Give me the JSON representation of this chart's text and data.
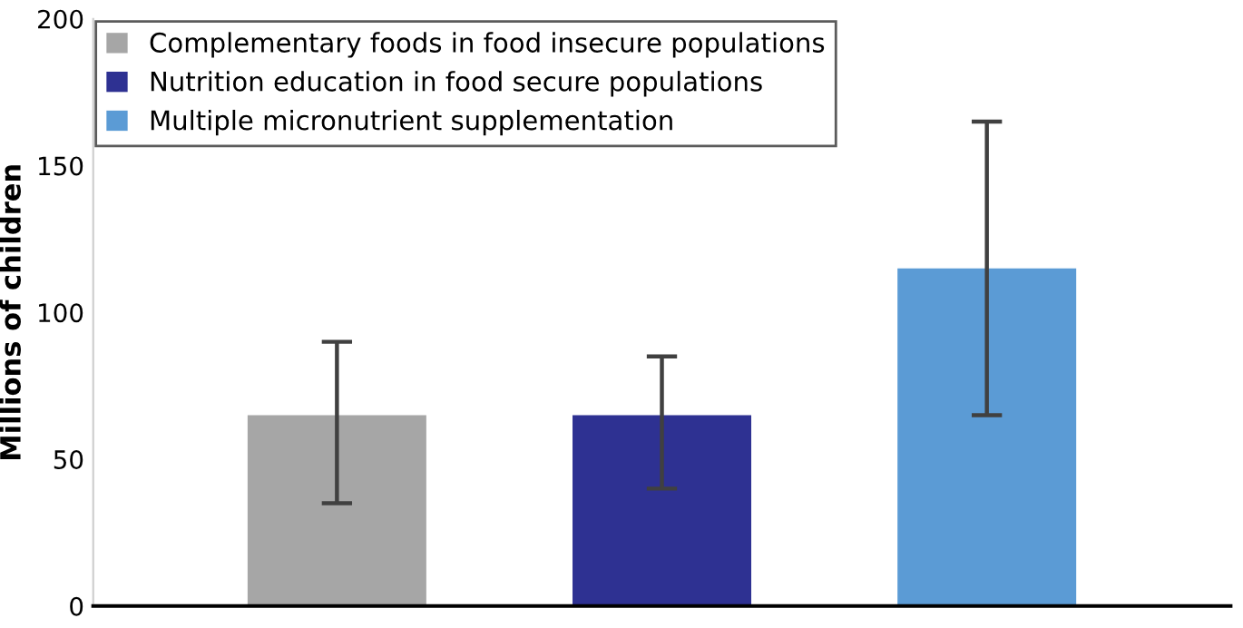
{
  "chart_data": {
    "type": "bar",
    "ylabel": "Millions of children",
    "categories": [
      null,
      null,
      null
    ],
    "series": [
      {
        "name": "Complementary foods in food insecure populations",
        "color": "#a6a6a6",
        "values": [
          65,
          null,
          null
        ],
        "errors": [
          [
            35,
            90
          ],
          null,
          null
        ]
      },
      {
        "name": "Nutrition education in food secure populations",
        "color": "#2e3192",
        "values": [
          null,
          65,
          null
        ],
        "errors": [
          null,
          [
            40,
            85
          ],
          null
        ]
      },
      {
        "name": "Multiple micronutrient supplementation",
        "color": "#5b9bd5",
        "values": [
          null,
          null,
          115
        ],
        "errors": [
          null,
          null,
          [
            65,
            165
          ]
        ]
      }
    ],
    "ylim": [
      0,
      200
    ],
    "yticks": [
      0,
      50,
      100,
      150,
      200
    ],
    "grid": false,
    "legend": "top left"
  }
}
